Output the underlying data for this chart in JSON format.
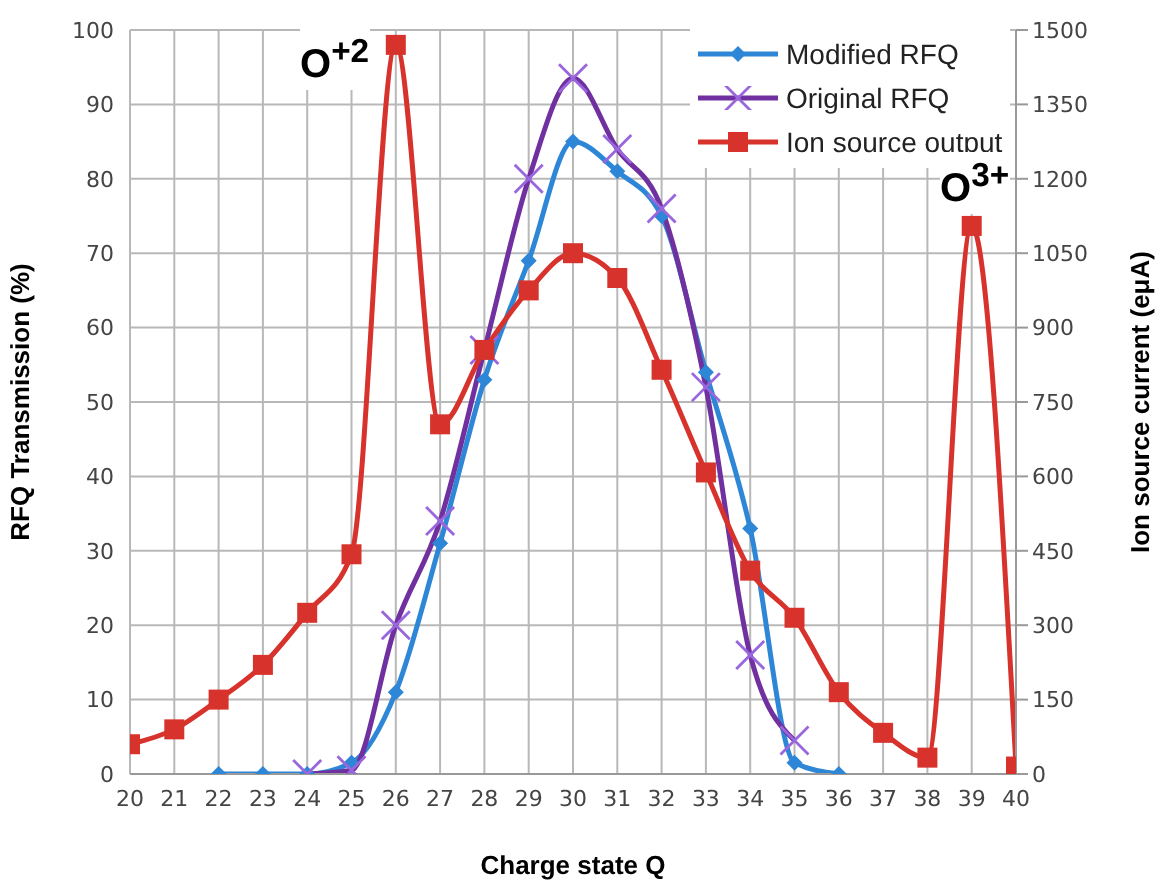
{
  "chart_data": {
    "type": "line",
    "xlabel": "Charge state Q",
    "ylabel": "RFQ Transmission (%)",
    "y2label": "Ion source current (eμA)",
    "x": [
      20,
      21,
      22,
      23,
      24,
      25,
      26,
      27,
      28,
      29,
      30,
      31,
      32,
      33,
      34,
      35,
      36,
      37,
      38,
      39,
      40
    ],
    "xlim": [
      20,
      40
    ],
    "xticks": [
      20,
      21,
      22,
      23,
      24,
      25,
      26,
      27,
      28,
      29,
      30,
      31,
      32,
      33,
      34,
      35,
      36,
      37,
      38,
      39,
      40
    ],
    "ylim": [
      0,
      100
    ],
    "yticks": [
      0,
      10,
      20,
      30,
      40,
      50,
      60,
      70,
      80,
      90,
      100
    ],
    "y2lim": [
      0,
      1500
    ],
    "y2ticks": [
      0,
      150,
      300,
      450,
      600,
      750,
      900,
      1050,
      1200,
      1350,
      1500
    ],
    "grid": true,
    "legend": "top right",
    "line_style": "solid",
    "annotations": [
      "O$^{+2}$",
      "O$^{3+}$"
    ],
    "series": [
      {
        "name": "Modified RFQ",
        "color": "#2e86d6",
        "marker": "diamond",
        "values": [
          null,
          null,
          0,
          0,
          0,
          1.5,
          11,
          31,
          53,
          69,
          85,
          81,
          75,
          54,
          33,
          1.5,
          0,
          null,
          null,
          null,
          null
        ]
      },
      {
        "name": "Original RFQ",
        "color": "#7030a0",
        "marker": "cross",
        "values": [
          null,
          null,
          null,
          null,
          0,
          0.5,
          20,
          34,
          57,
          80,
          93.5,
          84,
          76,
          52,
          16,
          4.5,
          null,
          null,
          null,
          null,
          null
        ]
      },
      {
        "name": "Ion source output",
        "color": "#d7322c",
        "marker": "square",
        "axis": "y2",
        "values": [
          60,
          90,
          150,
          220,
          325,
          443,
          1470,
          705,
          855,
          975,
          1050,
          1000,
          815,
          608,
          410,
          315,
          165,
          83,
          33,
          1105,
          15
        ]
      }
    ]
  }
}
